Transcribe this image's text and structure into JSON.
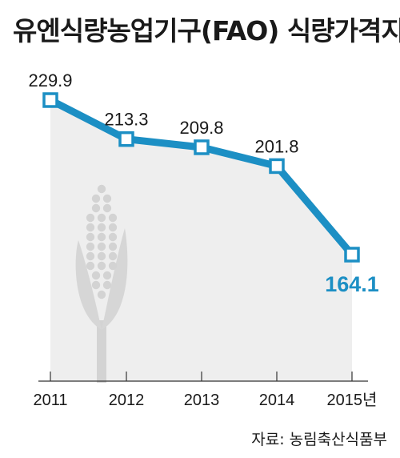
{
  "chart_data": {
    "type": "line",
    "title": "유엔식량농업기구(FAO) 식량가격지수",
    "xlabel": "",
    "ylabel": "",
    "categories": [
      "2011",
      "2012",
      "2013",
      "2014",
      "2015년"
    ],
    "series": [
      {
        "values": [
          229.9,
          213.3,
          209.8,
          201.8,
          164.1
        ]
      }
    ],
    "data_labels": [
      "229.9",
      "213.3",
      "209.8",
      "201.8",
      "164.1"
    ],
    "ylim": [
      140,
      240
    ],
    "grid": false,
    "source": "자료: 농림축산식품부",
    "colors": {
      "line": "#1c8fc4",
      "marker_fill": "#ffffff",
      "area": "#eeeeee",
      "highlight_label": "#1c8fc4",
      "illustration": "#d3d3d3"
    },
    "illustration": "corn-icon"
  }
}
